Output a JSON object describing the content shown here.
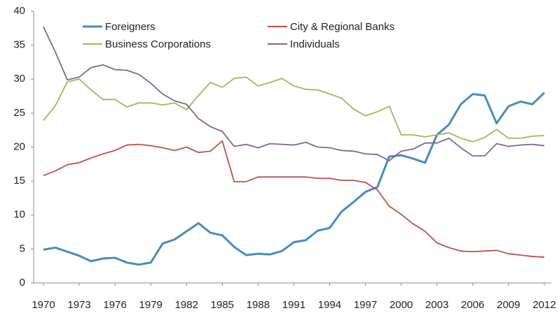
{
  "chart_data": {
    "type": "line",
    "x": [
      1970,
      1971,
      1972,
      1973,
      1974,
      1975,
      1976,
      1977,
      1978,
      1979,
      1980,
      1981,
      1982,
      1983,
      1984,
      1985,
      1986,
      1987,
      1988,
      1989,
      1990,
      1991,
      1992,
      1993,
      1994,
      1995,
      1996,
      1997,
      1998,
      1999,
      2000,
      2001,
      2002,
      2003,
      2004,
      2005,
      2006,
      2007,
      2008,
      2009,
      2010,
      2011,
      2012
    ],
    "series": [
      {
        "name": "Foreigners",
        "color": "#4a8ac0",
        "values": [
          4.9,
          5.2,
          4.6,
          4.0,
          3.2,
          3.6,
          3.7,
          3.0,
          2.7,
          3.0,
          5.8,
          6.4,
          7.6,
          8.8,
          7.4,
          7.0,
          5.3,
          4.1,
          4.3,
          4.2,
          4.7,
          6.0,
          6.3,
          7.7,
          8.1,
          10.5,
          11.9,
          13.4,
          14.1,
          18.6,
          18.8,
          18.3,
          17.7,
          21.8,
          23.3,
          26.3,
          27.8,
          27.6,
          23.5,
          26.0,
          26.7,
          26.3,
          28.0
        ]
      },
      {
        "name": "City & Regional Banks",
        "color": "#c0504d",
        "values": [
          15.8,
          16.5,
          17.4,
          17.7,
          18.4,
          19.0,
          19.5,
          20.3,
          20.4,
          20.2,
          19.9,
          19.5,
          20.0,
          19.2,
          19.4,
          20.9,
          14.9,
          14.9,
          15.6,
          15.6,
          15.6,
          15.6,
          15.6,
          15.4,
          15.4,
          15.1,
          15.1,
          14.8,
          13.7,
          11.3,
          10.1,
          8.7,
          7.6,
          5.9,
          5.2,
          4.7,
          4.6,
          4.7,
          4.8,
          4.3,
          4.1,
          3.9,
          3.8
        ]
      },
      {
        "name": "Business Corporations",
        "color": "#9bbb59",
        "values": [
          23.9,
          26.1,
          29.6,
          30.0,
          28.4,
          27.0,
          27.0,
          25.9,
          26.5,
          26.5,
          26.2,
          26.5,
          25.5,
          27.6,
          29.5,
          28.8,
          30.1,
          30.3,
          29.0,
          29.5,
          30.1,
          29.0,
          28.5,
          28.4,
          27.8,
          27.2,
          25.6,
          24.6,
          25.2,
          26.0,
          21.8,
          21.8,
          21.5,
          21.8,
          22.1,
          21.3,
          20.8,
          21.4,
          22.6,
          21.3,
          21.3,
          21.6,
          21.7
        ]
      },
      {
        "name": "Individuals",
        "color": "#8064a2",
        "values": [
          37.7,
          34.0,
          29.9,
          30.3,
          31.7,
          32.1,
          31.4,
          31.3,
          30.7,
          29.4,
          27.8,
          26.8,
          26.3,
          24.2,
          23.0,
          22.3,
          20.1,
          20.4,
          19.9,
          20.5,
          20.4,
          20.3,
          20.7,
          20.0,
          19.9,
          19.5,
          19.4,
          19.0,
          18.9,
          18.0,
          19.4,
          19.7,
          20.6,
          20.6,
          21.3,
          19.9,
          18.7,
          18.7,
          20.5,
          20.1,
          20.3,
          20.4,
          20.2
        ]
      }
    ],
    "xlim": [
      1970,
      2012
    ],
    "xticks": [
      1970,
      1973,
      1976,
      1979,
      1982,
      1985,
      1988,
      1991,
      1994,
      1997,
      2000,
      2003,
      2006,
      2009,
      2012
    ],
    "ylim": [
      0,
      40
    ],
    "yticks": [
      0,
      5,
      10,
      15,
      20,
      25,
      30,
      35,
      40
    ],
    "grid": false
  }
}
